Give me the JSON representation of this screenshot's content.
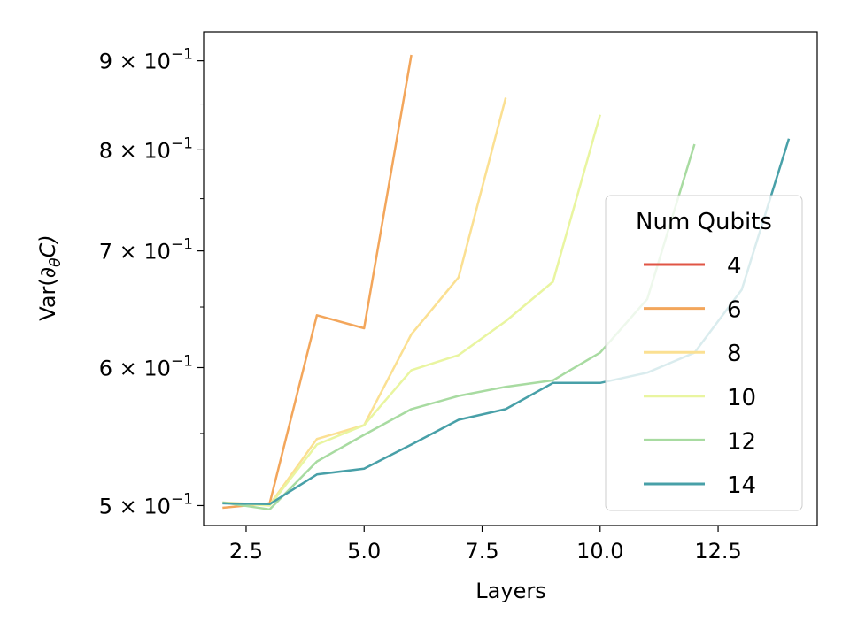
{
  "chart_data": {
    "type": "line",
    "xlabel": "Layers",
    "ylabel_parts": {
      "base": "Var(∂",
      "sub": "θ",
      "end": "C)"
    },
    "xlim": [
      1.6,
      14.6
    ],
    "ylim": [
      0.487,
      0.935
    ],
    "yscale": "log",
    "xticks": [
      2.5,
      5.0,
      7.5,
      10.0,
      12.5
    ],
    "xtick_labels": [
      "2.5",
      "5.0",
      "7.5",
      "10.0",
      "12.5"
    ],
    "yticks": [
      {
        "value": 0.5,
        "coef": "5",
        "base": "10",
        "exp": "−1"
      },
      {
        "value": 0.6,
        "coef": "6",
        "base": "10",
        "exp": "−1"
      },
      {
        "value": 0.7,
        "coef": "7",
        "base": "10",
        "exp": "−1"
      },
      {
        "value": 0.8,
        "coef": "8",
        "base": "10",
        "exp": "−1"
      },
      {
        "value": 0.9,
        "coef": "9",
        "base": "10",
        "exp": "−1"
      }
    ],
    "legend": {
      "title": "Num Qubits",
      "placement": "center-right"
    },
    "series": [
      {
        "name": "4",
        "color": "#e05545",
        "x": [
          2
        ],
        "y": [
          0.5
        ]
      },
      {
        "name": "6",
        "color": "#f3a65b",
        "x": [
          2,
          3,
          4,
          5,
          6
        ],
        "y": [
          0.4985,
          0.5015,
          0.643,
          0.632,
          0.907
        ]
      },
      {
        "name": "8",
        "color": "#fbe092",
        "x": [
          2,
          3,
          4,
          5,
          6,
          7,
          8
        ],
        "y": [
          0.502,
          0.5005,
          0.546,
          0.556,
          0.627,
          0.676,
          0.857
        ]
      },
      {
        "name": "10",
        "color": "#e9f5a0",
        "x": [
          2,
          3,
          4,
          5,
          6,
          7,
          8,
          9,
          10
        ],
        "y": [
          0.502,
          0.5,
          0.542,
          0.556,
          0.598,
          0.61,
          0.638,
          0.672,
          0.838
        ]
      },
      {
        "name": "12",
        "color": "#a8dba1",
        "x": [
          2,
          3,
          4,
          5,
          6,
          7,
          8,
          9,
          10,
          11,
          12
        ],
        "y": [
          0.502,
          0.4975,
          0.53,
          0.549,
          0.568,
          0.578,
          0.585,
          0.59,
          0.612,
          0.657,
          0.806
        ]
      },
      {
        "name": "14",
        "color": "#48a0a8",
        "x": [
          2,
          3,
          4,
          5,
          6,
          7,
          8,
          9,
          10,
          11,
          12,
          13,
          14
        ],
        "y": [
          0.5015,
          0.501,
          0.521,
          0.525,
          0.542,
          0.56,
          0.568,
          0.588,
          0.588,
          0.596,
          0.612,
          0.665,
          0.812
        ]
      }
    ]
  }
}
